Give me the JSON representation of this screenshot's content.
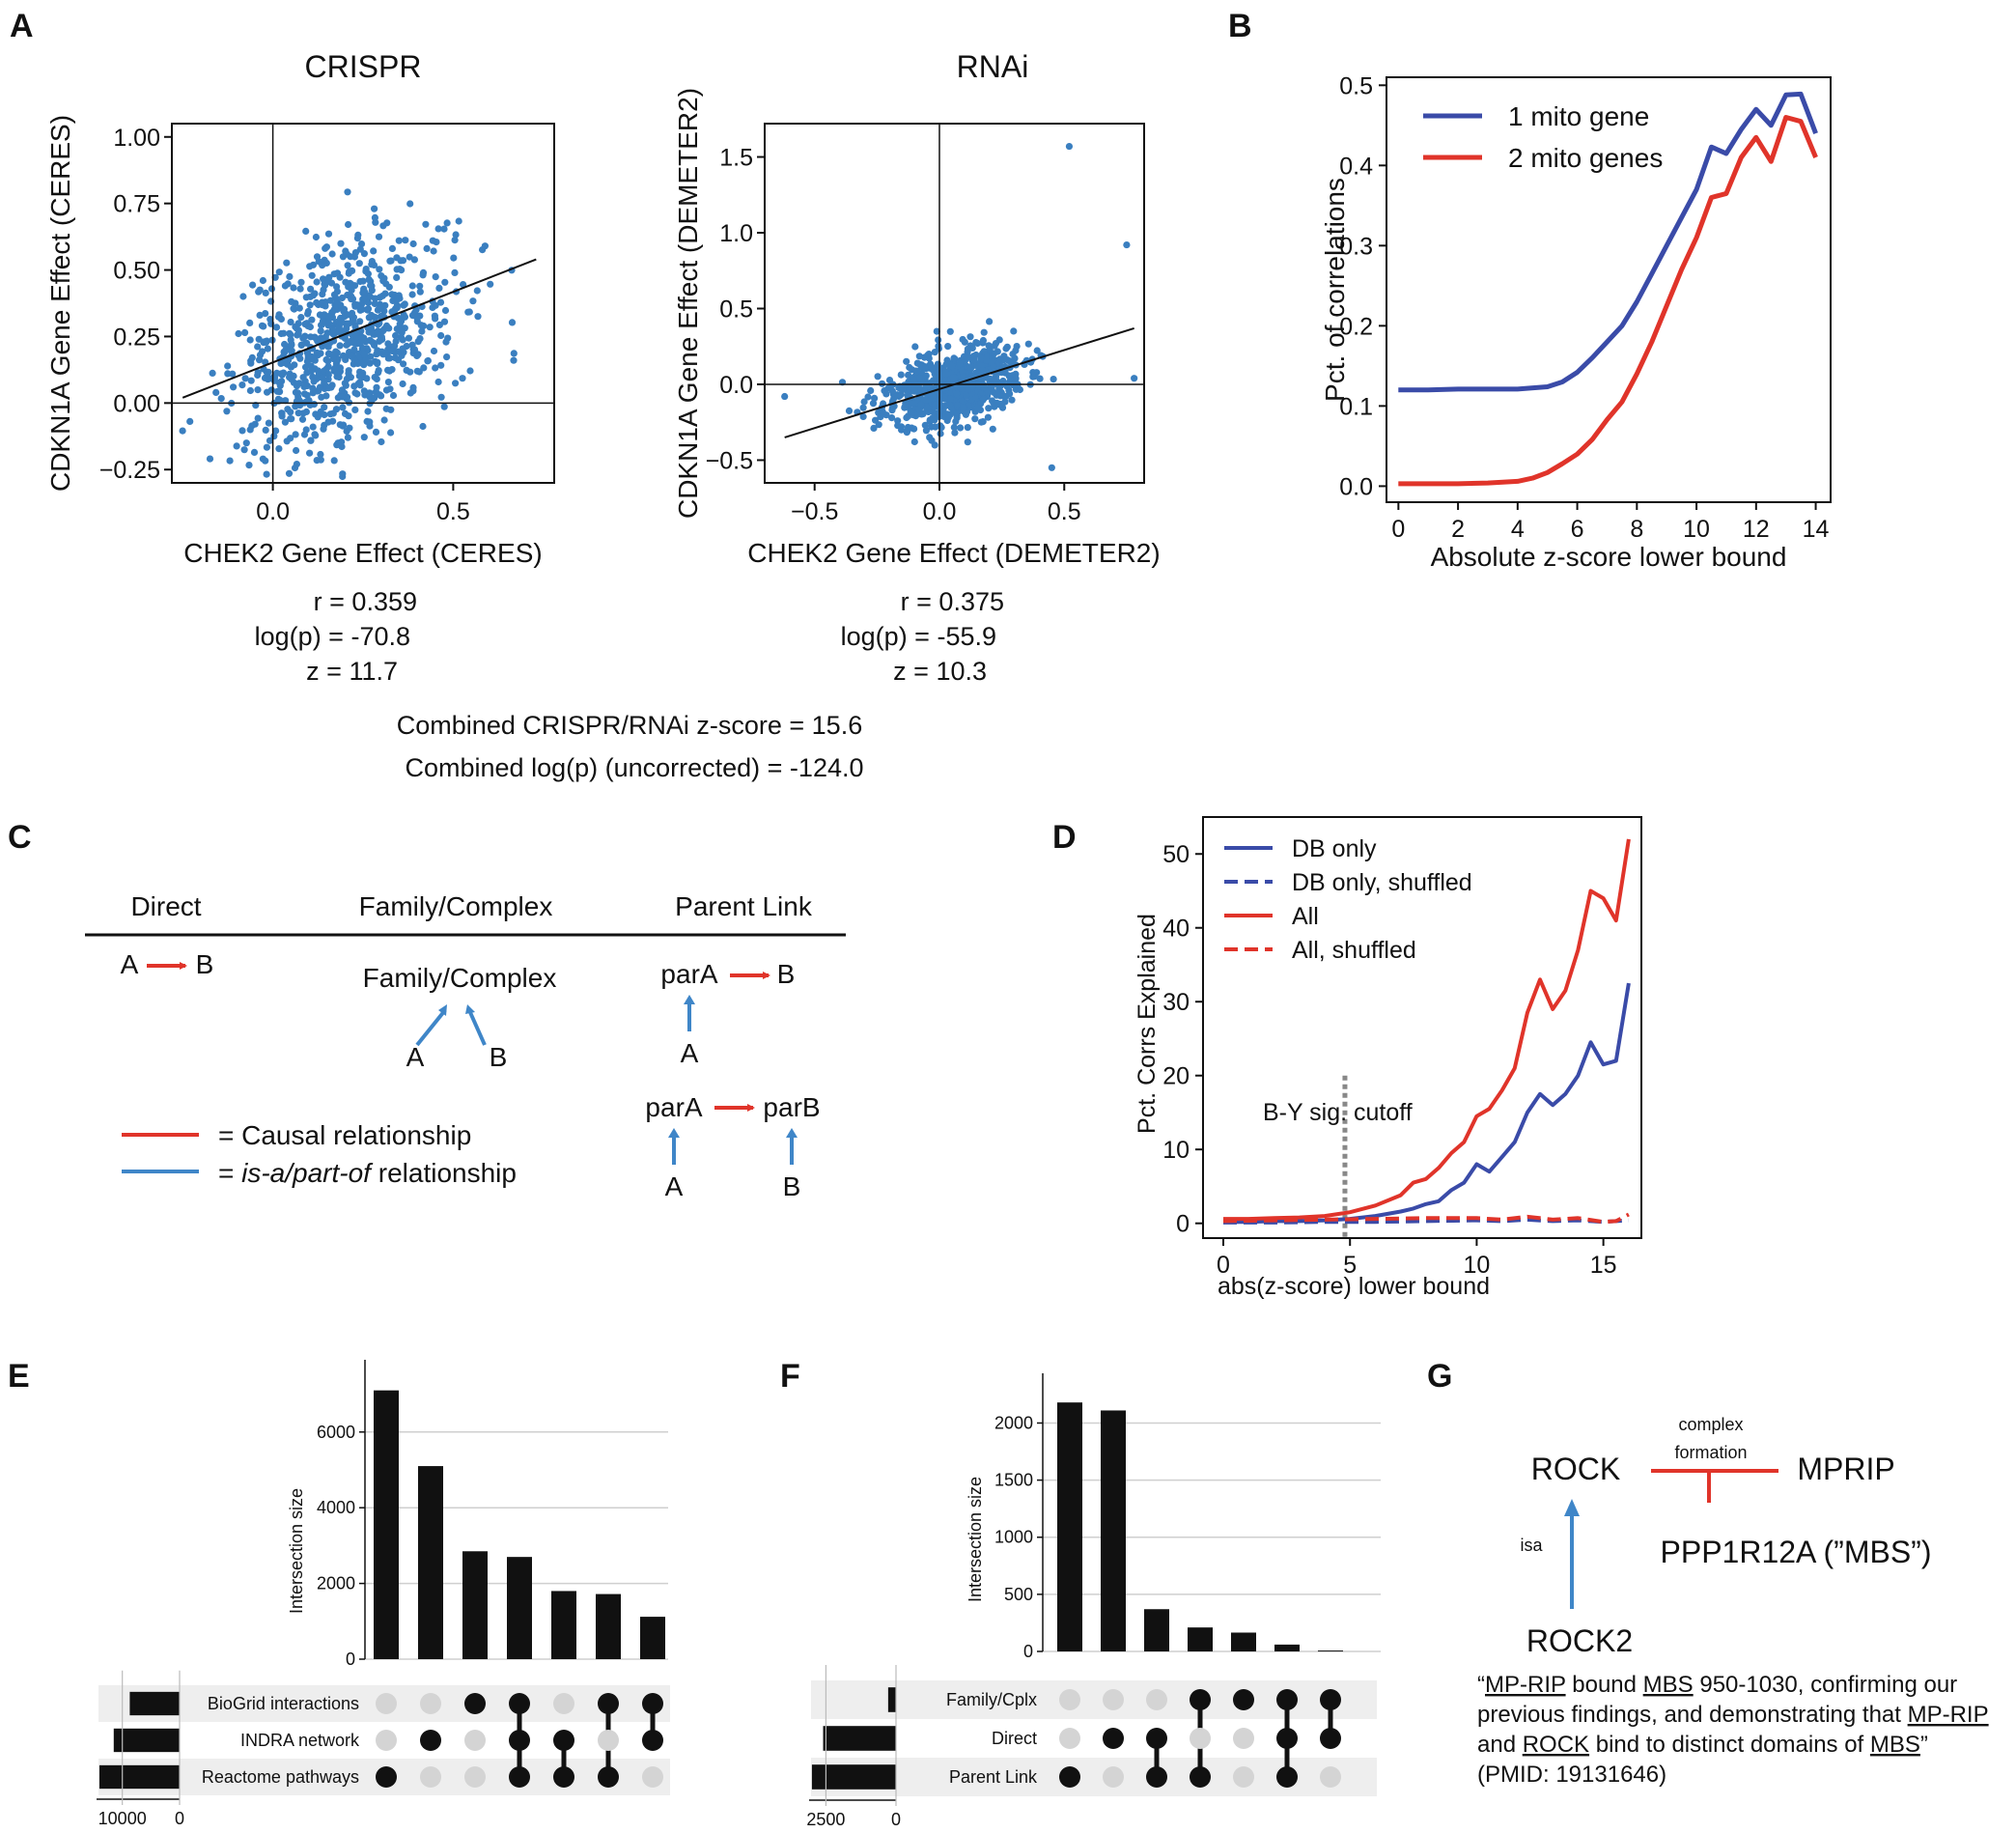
{
  "panel_labels": {
    "A": "A",
    "B": "B",
    "C": "C",
    "D": "D",
    "E": "E",
    "F": "F",
    "G": "G"
  },
  "chart_data": [
    {
      "id": "A_crispr",
      "type": "scatter",
      "title": "CRISPR",
      "xlabel": "CHEK2 Gene Effect (CERES)",
      "ylabel": "CDKN1A Gene Effect (CERES)",
      "xlim": [
        -0.28,
        0.78
      ],
      "ylim": [
        -0.3,
        1.05
      ],
      "xticks": [
        {
          "v": 0.0,
          "label": "0.0"
        },
        {
          "v": 0.5,
          "label": "0.5"
        }
      ],
      "yticks": [
        {
          "v": -0.25,
          "label": "−0.25"
        },
        {
          "v": 0.0,
          "label": "0.00"
        },
        {
          "v": 0.25,
          "label": "0.25"
        },
        {
          "v": 0.5,
          "label": "0.50"
        },
        {
          "v": 0.75,
          "label": "0.75"
        },
        {
          "v": 1.0,
          "label": "1.00"
        }
      ],
      "fit": {
        "x": [
          -0.25,
          0.73
        ],
        "y": [
          0.02,
          0.54
        ]
      },
      "cloud": {
        "cx": 0.2,
        "cy": 0.22,
        "sx": 0.15,
        "sy": 0.2,
        "rho": 0.359,
        "n": 850
      },
      "stats": [
        "r = 0.359",
        "log(p) = -70.8",
        "z = 11.7"
      ]
    },
    {
      "id": "A_rnai",
      "type": "scatter",
      "title": "RNAi",
      "xlabel": "CHEK2 Gene Effect (DEMETER2)",
      "ylabel": "CDKN1A Gene Effect (DEMETER2)",
      "xlim": [
        -0.7,
        0.82
      ],
      "ylim": [
        -0.65,
        1.72
      ],
      "xticks": [
        {
          "v": -0.5,
          "label": "−0.5"
        },
        {
          "v": 0.0,
          "label": "0.0"
        },
        {
          "v": 0.5,
          "label": "0.5"
        }
      ],
      "yticks": [
        {
          "v": -0.5,
          "label": "−0.5"
        },
        {
          "v": 0.0,
          "label": "0.0"
        },
        {
          "v": 0.5,
          "label": "0.5"
        },
        {
          "v": 1.0,
          "label": "1.0"
        },
        {
          "v": 1.5,
          "label": "1.5"
        }
      ],
      "fit": {
        "x": [
          -0.62,
          0.78
        ],
        "y": [
          -0.35,
          0.37
        ]
      },
      "cloud": {
        "cx": 0.05,
        "cy": -0.02,
        "sx": 0.14,
        "sy": 0.13,
        "rho": 0.375,
        "n": 750
      },
      "stats": [
        "r = 0.375",
        "log(p) = -55.9",
        "z = 10.3"
      ]
    },
    {
      "id": "B",
      "type": "line",
      "xlabel": "Absolute z-score lower bound",
      "ylabel": "Pct. of correlations",
      "xlim": [
        -0.4,
        14.5
      ],
      "ylim": [
        -0.02,
        0.51
      ],
      "xticks": [
        0,
        2,
        4,
        6,
        8,
        10,
        12,
        14
      ],
      "yticks": [
        {
          "v": 0.0,
          "label": "0.0"
        },
        {
          "v": 0.1,
          "label": "0.1"
        },
        {
          "v": 0.2,
          "label": "0.2"
        },
        {
          "v": 0.3,
          "label": "0.3"
        },
        {
          "v": 0.4,
          "label": "0.4"
        },
        {
          "v": 0.5,
          "label": "0.5"
        }
      ],
      "legend": "top-left",
      "series": [
        {
          "name": "1 mito gene",
          "color": "#3a4ba8",
          "dash": false,
          "x": [
            0,
            1,
            2,
            3,
            4,
            5,
            5.5,
            6,
            6.5,
            7,
            7.5,
            8,
            8.5,
            9,
            9.5,
            10,
            10.5,
            11,
            11.5,
            12,
            12.5,
            13,
            13.5,
            14
          ],
          "y": [
            0.12,
            0.12,
            0.121,
            0.121,
            0.121,
            0.124,
            0.13,
            0.142,
            0.16,
            0.18,
            0.2,
            0.23,
            0.265,
            0.3,
            0.335,
            0.37,
            0.423,
            0.415,
            0.445,
            0.47,
            0.45,
            0.488,
            0.489,
            0.44
          ]
        },
        {
          "name": "2 mito genes",
          "color": "#e0342a",
          "dash": false,
          "x": [
            0,
            1,
            2,
            3,
            4,
            4.5,
            5,
            5.5,
            6,
            6.5,
            7,
            7.5,
            8,
            8.5,
            9,
            9.5,
            10,
            10.5,
            11,
            11.5,
            12,
            12.5,
            13,
            13.5,
            14
          ],
          "y": [
            0.003,
            0.003,
            0.003,
            0.004,
            0.006,
            0.01,
            0.017,
            0.028,
            0.04,
            0.058,
            0.083,
            0.105,
            0.14,
            0.18,
            0.225,
            0.27,
            0.31,
            0.36,
            0.365,
            0.41,
            0.435,
            0.405,
            0.46,
            0.455,
            0.41
          ]
        }
      ]
    },
    {
      "id": "D",
      "type": "line",
      "xlabel": "abs(z-score) lower bound",
      "ylabel": "Pct. Corrs Explained",
      "xlim": [
        -0.8,
        16.5
      ],
      "ylim": [
        -2,
        55
      ],
      "xticks": [
        0,
        5,
        10,
        15
      ],
      "yticks": [
        0,
        10,
        20,
        30,
        40,
        50
      ],
      "legend": "top-left",
      "annotation": {
        "text": "B-Y sig. cutoff",
        "x": 4.8
      },
      "series": [
        {
          "name": "DB only",
          "color": "#3a4ba8",
          "dash": false,
          "x": [
            0,
            1,
            2,
            3,
            4,
            5,
            6,
            7,
            7.5,
            8,
            8.5,
            9,
            9.5,
            10,
            10.5,
            11,
            11.5,
            12,
            12.5,
            13,
            13.5,
            14,
            14.5,
            15,
            15.5,
            16
          ],
          "y": [
            0.2,
            0.2,
            0.3,
            0.3,
            0.4,
            0.6,
            1.0,
            1.6,
            2.0,
            2.6,
            3.0,
            4.5,
            5.5,
            8.0,
            7.0,
            9.0,
            11.0,
            15.0,
            17.5,
            16.0,
            17.5,
            20.0,
            24.5,
            21.5,
            22.0,
            32.5
          ]
        },
        {
          "name": "DB only, shuffled",
          "color": "#3a4ba8",
          "dash": true,
          "x": [
            0,
            2,
            4,
            6,
            8,
            10,
            11,
            12,
            13,
            14,
            15,
            15.5,
            16
          ],
          "y": [
            0.1,
            0.1,
            0.2,
            0.2,
            0.3,
            0.4,
            0.3,
            0.5,
            0.3,
            0.4,
            0.2,
            0.3,
            0.4
          ]
        },
        {
          "name": "All",
          "color": "#e0342a",
          "dash": false,
          "x": [
            0,
            1,
            2,
            3,
            4,
            5,
            6,
            7,
            7.5,
            8,
            8.5,
            9,
            9.5,
            10,
            10.5,
            11,
            11.5,
            12,
            12.5,
            13,
            13.5,
            14,
            14.5,
            15,
            15.5,
            16
          ],
          "y": [
            0.6,
            0.6,
            0.7,
            0.8,
            1.0,
            1.5,
            2.4,
            3.8,
            5.5,
            6.0,
            7.5,
            9.5,
            11.0,
            14.5,
            15.5,
            18.0,
            21.0,
            28.5,
            33.0,
            29.0,
            31.5,
            37.0,
            45.0,
            44.0,
            41.0,
            52.0
          ]
        },
        {
          "name": "All, shuffled",
          "color": "#e0342a",
          "dash": true,
          "x": [
            0,
            2,
            4,
            6,
            8,
            10,
            11,
            12,
            13,
            14,
            15,
            15.5,
            16
          ],
          "y": [
            0.3,
            0.4,
            0.5,
            0.6,
            0.7,
            0.7,
            0.5,
            0.9,
            0.5,
            0.7,
            0.2,
            0.3,
            1.2
          ]
        }
      ]
    },
    {
      "id": "E",
      "type": "bar",
      "ylabel": "Intersection size",
      "ylim": [
        0,
        7500
      ],
      "yticks": [
        0,
        2000,
        4000,
        6000
      ],
      "values": [
        7100,
        5100,
        2850,
        2700,
        1800,
        1720,
        1120
      ],
      "sets": [
        "BioGrid interactions",
        "INDRA network",
        "Reactome pathways"
      ],
      "set_sizes": [
        8700,
        11500,
        14000
      ],
      "set_xlim": [
        14500,
        0
      ],
      "set_xticks": [
        {
          "v": 10000,
          "label": "10000"
        },
        {
          "v": 0,
          "label": "0"
        }
      ],
      "membership": [
        [
          2
        ],
        [
          1
        ],
        [
          0
        ],
        [
          0,
          1,
          2
        ],
        [
          1,
          2
        ],
        [
          0,
          2
        ],
        [
          0,
          1
        ]
      ]
    },
    {
      "id": "F",
      "type": "bar",
      "ylabel": "Intersection size",
      "ylim": [
        0,
        2300
      ],
      "yticks": [
        0,
        500,
        1000,
        1500,
        2000
      ],
      "values": [
        2180,
        2110,
        370,
        210,
        165,
        60,
        8
      ],
      "sets": [
        "Family/Cplx",
        "Direct",
        "Parent Link"
      ],
      "set_sizes": [
        280,
        2600,
        3000
      ],
      "set_xlim": [
        3100,
        0
      ],
      "set_xticks": [
        {
          "v": 2500,
          "label": "2500"
        },
        {
          "v": 0,
          "label": "0"
        }
      ],
      "membership": [
        [
          2
        ],
        [
          1
        ],
        [
          1,
          2
        ],
        [
          0,
          2
        ],
        [
          0
        ],
        [
          0,
          1,
          2
        ],
        [
          0,
          1
        ]
      ]
    }
  ],
  "combined": {
    "line1": "Combined CRISPR/RNAi z-score = 15.6",
    "line2": "Combined log(p) (uncorrected) = -124.0"
  },
  "panel_c": {
    "col_direct": "Direct",
    "col_family": "Family/Complex",
    "col_parent": "Parent Link",
    "a": "A",
    "b": "B",
    "family_node": "Family/Complex",
    "parA": "parA",
    "parB": "parB",
    "legend_causal": "= Causal relationship",
    "legend_isa_em": "is-a/part-of",
    "legend_isa_rest": " relationship",
    "eq": "= ",
    "colors": {
      "causal": "#e0342a",
      "isa": "#3f86c8"
    }
  },
  "panel_g": {
    "rock": "ROCK",
    "mprip": "MPRIP",
    "ppp": "PPP1R12A (”MBS”)",
    "rock2": "ROCK2",
    "complex1": "complex",
    "complex2": "formation",
    "isa": "isa",
    "quote": [
      {
        "t": "“"
      },
      {
        "t": "MP-RIP",
        "u": true
      },
      {
        "t": " bound "
      },
      {
        "t": "MBS",
        "u": true
      },
      {
        "t": " 950-1030, confirming our"
      },
      {
        "br": true
      },
      {
        "t": "previous findings, and demonstrating that "
      },
      {
        "t": "MP-RIP",
        "u": true
      },
      {
        "br": true
      },
      {
        "t": "and "
      },
      {
        "t": "ROCK",
        "u": true
      },
      {
        "t": " bind to distinct domains of "
      },
      {
        "t": "MBS",
        "u": true
      },
      {
        "t": "”"
      },
      {
        "br": true
      },
      {
        "t": "(PMID: 19131646)"
      }
    ]
  }
}
